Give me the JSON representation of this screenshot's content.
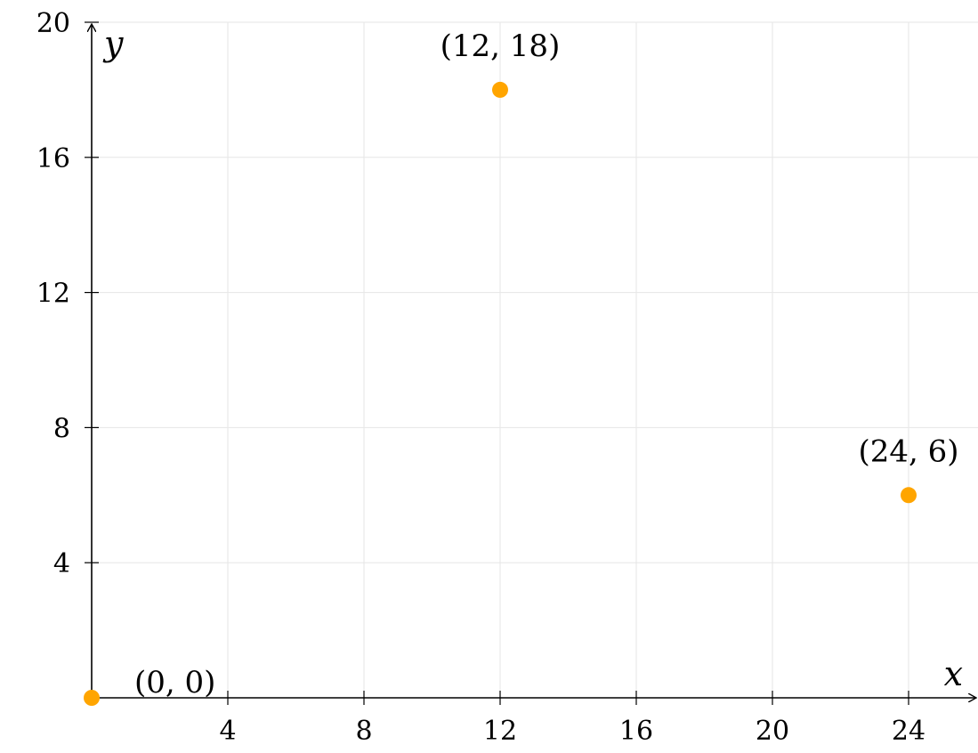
{
  "chart_data": {
    "type": "scatter",
    "xlabel": "x",
    "ylabel": "y",
    "xlim": [
      0,
      26
    ],
    "ylim": [
      0,
      20
    ],
    "x_ticks": [
      4,
      8,
      12,
      16,
      20,
      24
    ],
    "y_ticks": [
      4,
      8,
      12,
      16,
      20
    ],
    "grid": true,
    "series": [
      {
        "color": "#FFA500",
        "points": [
          {
            "x": 0,
            "y": 0,
            "label": "(0, 0)"
          },
          {
            "x": 12,
            "y": 18,
            "label": "(12, 18)"
          },
          {
            "x": 24,
            "y": 6,
            "label": "(24, 6)"
          }
        ]
      }
    ]
  }
}
